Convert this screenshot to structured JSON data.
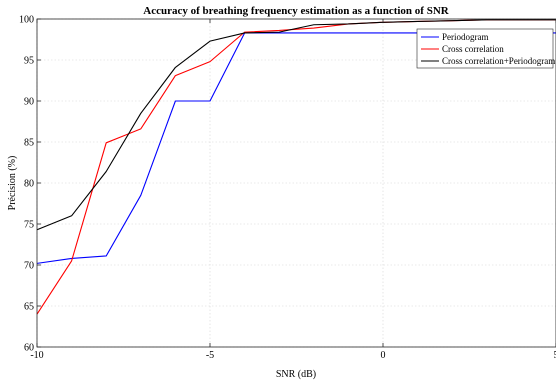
{
  "chart_data": {
    "type": "line",
    "title": "Accuracy of breathing frequency estimation as a function of SNR",
    "xlabel": "SNR (dB)",
    "ylabel": "Précision (%)",
    "xlim": [
      -10,
      5
    ],
    "ylim": [
      60,
      100
    ],
    "x_ticks": [
      -10,
      -5,
      0,
      5
    ],
    "y_ticks": [
      60,
      65,
      70,
      75,
      80,
      85,
      90,
      95,
      100
    ],
    "x_tick_labels": [
      "-10",
      "-5",
      "0",
      "5"
    ],
    "y_tick_labels": [
      "60",
      "65",
      "70",
      "75",
      "80",
      "85",
      "90",
      "95",
      "100"
    ],
    "grid": true,
    "legend": "top-right",
    "x": [
      -10,
      -9,
      -8,
      -7,
      -6,
      -5,
      -4,
      -3,
      -2,
      -1,
      0,
      1,
      2,
      3,
      4,
      5
    ],
    "series": [
      {
        "name": "Periodogram",
        "color": "#0000ff",
        "values": [
          70.2,
          70.8,
          71.1,
          78.5,
          90.0,
          90.0,
          98.3,
          98.3,
          98.3,
          98.3,
          98.3,
          98.3,
          98.3,
          98.3,
          98.3,
          98.3
        ]
      },
      {
        "name": "Cross correlation",
        "color": "#ff0000",
        "values": [
          64.0,
          70.5,
          84.9,
          86.6,
          93.1,
          94.8,
          98.4,
          98.6,
          98.9,
          99.4,
          99.6,
          99.7,
          99.8,
          99.9,
          99.9,
          99.9
        ]
      },
      {
        "name": "Cross correlation+Periodogram",
        "color": "#000000",
        "values": [
          74.3,
          76.0,
          81.4,
          88.5,
          94.1,
          97.3,
          98.3,
          98.4,
          99.3,
          99.4,
          99.6,
          99.7,
          99.8,
          99.9,
          99.9,
          99.9
        ]
      }
    ]
  }
}
